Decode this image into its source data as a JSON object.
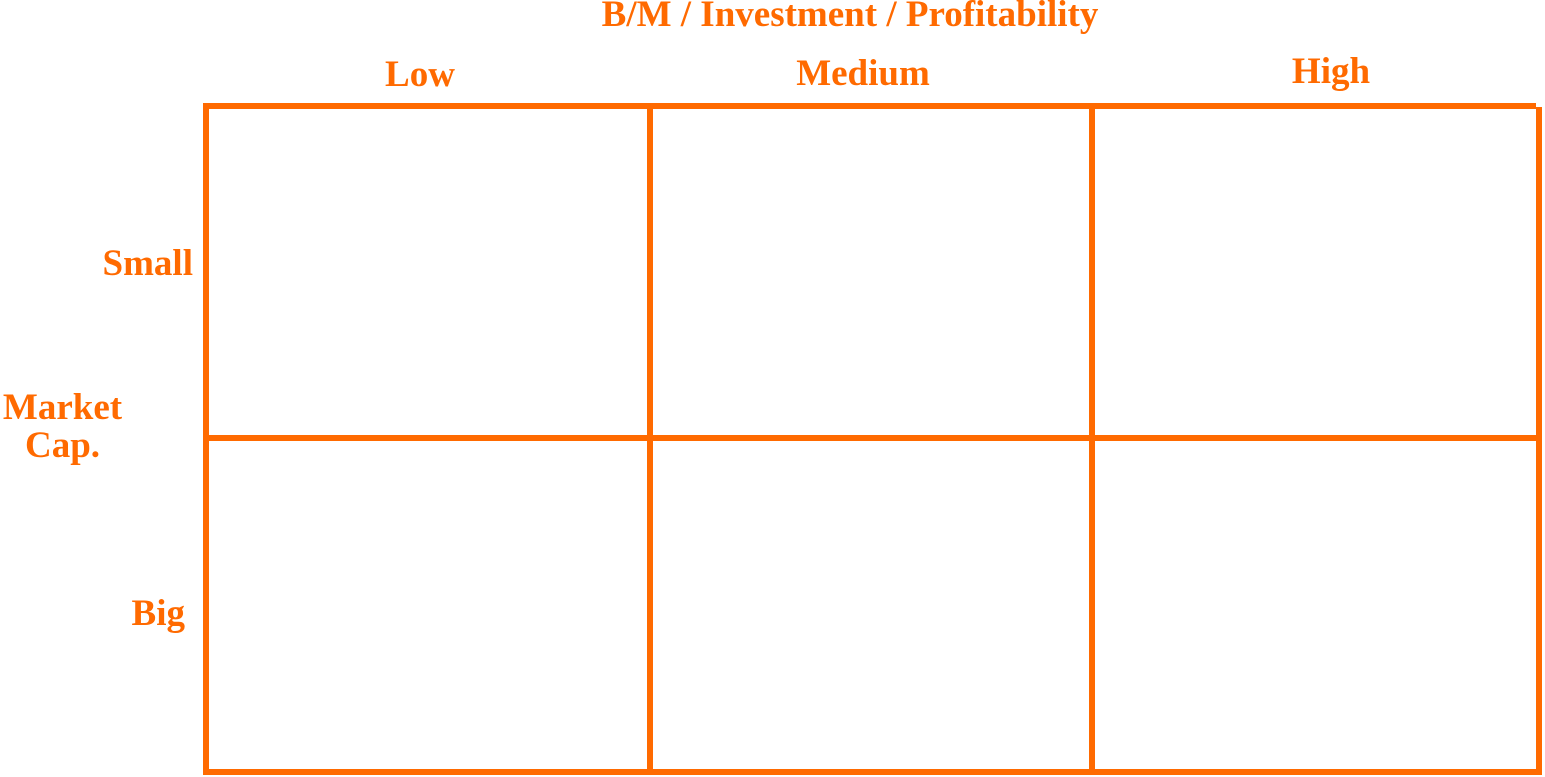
{
  "colors": {
    "accent": "#ff6a00",
    "background": "#ffffff"
  },
  "diagram": {
    "title": "B/M / Investment / Profitability",
    "columns": [
      {
        "label": "Low"
      },
      {
        "label": "Medium"
      },
      {
        "label": "High"
      }
    ],
    "rows": [
      {
        "label": "Small"
      },
      {
        "label": "Big"
      }
    ],
    "row_axis": {
      "line1": "Market",
      "line2": "Cap."
    }
  }
}
